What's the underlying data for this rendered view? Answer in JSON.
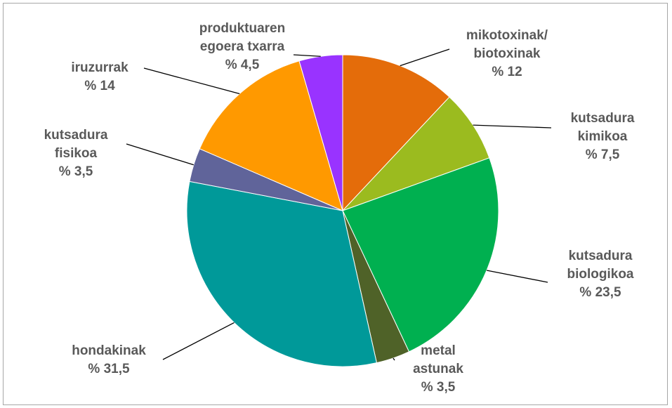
{
  "chart_data": {
    "type": "pie",
    "categories": [
      "mikotoxinak/\nbiotoxinak",
      "kutsadura\nkimikoa",
      "kutsadura\nbiologikoa",
      "metal\nastunak",
      "hondakinak",
      "kutsadura\nfisikoa",
      "iruzurrak",
      "produktuaren\negoera txarra"
    ],
    "values": [
      12,
      7.5,
      23.5,
      3.5,
      31.5,
      3.5,
      14,
      4.5
    ],
    "value_labels": [
      "% 12",
      "% 7,5",
      "% 23,5",
      "% 3,5",
      "% 31,5",
      "% 3,5",
      "% 14",
      "% 4,5"
    ],
    "colors": [
      "#e46c0a",
      "#9bbb1f",
      "#00b050",
      "#4f6228",
      "#009999",
      "#60649a",
      "#ff9900",
      "#9933ff"
    ]
  }
}
